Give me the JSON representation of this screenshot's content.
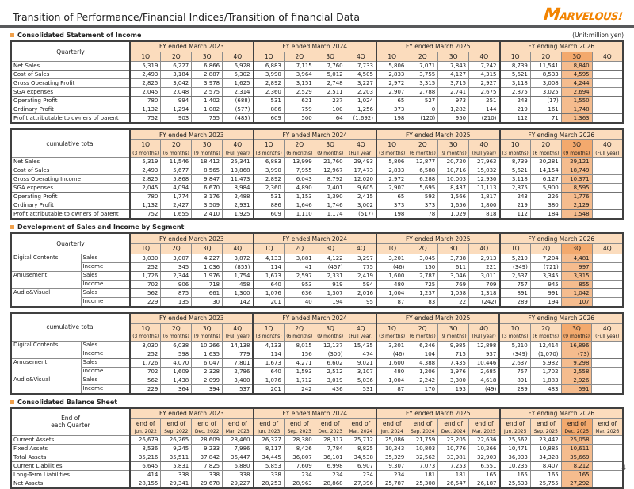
{
  "page": {
    "title": "Transition of Performance/Financial Indices/Transition of financial Data",
    "logo_text": "MARVELOUS!",
    "unit_note": "(Unit:million yen)",
    "page_number": "4"
  },
  "colors": {
    "accent_orange": "#F28300",
    "table_header_bg": "#FBDCBD",
    "highlight_column_bg": "#F5B183",
    "section_bullet": "#F0A04B",
    "divider_gray": "#58595B"
  },
  "sections": {
    "income": "Consolidated Statement of Income",
    "segment": "Development of Sales and Income by Segment",
    "balance": "Consolidated Balance Sheet"
  },
  "year_groups": [
    "FY ended March 2023",
    "FY ended March 2024",
    "FY ended March 2025",
    "FY ending March 2026"
  ],
  "tables": [
    {
      "name": "income-quarterly",
      "corner_label": "Quarterly",
      "label_col_widths": [
        150
      ],
      "highlight_col": 14,
      "columns": [
        "1Q",
        "2Q",
        "3Q",
        "4Q",
        "1Q",
        "2Q",
        "3Q",
        "4Q",
        "1Q",
        "2Q",
        "3Q",
        "4Q",
        "1Q",
        "2Q",
        "3Q",
        "4Q"
      ],
      "rows": [
        {
          "label": "Net Sales",
          "dotted": false,
          "values": [
            "5,319",
            "6,227",
            "6,866",
            "6,928",
            "6,883",
            "7,115",
            "7,760",
            "7,733",
            "5,806",
            "7,071",
            "7,843",
            "7,242",
            "8,739",
            "11,541",
            "8,840",
            ""
          ]
        },
        {
          "label": "Cost of Sales",
          "dotted": true,
          "values": [
            "2,493",
            "3,184",
            "2,887",
            "5,302",
            "3,990",
            "3,964",
            "5,012",
            "4,505",
            "2,833",
            "3,755",
            "4,127",
            "4,315",
            "5,621",
            "8,533",
            "4,595",
            ""
          ]
        },
        {
          "label": "Gross Operating Profit",
          "dotted": true,
          "values": [
            "2,825",
            "3,042",
            "3,978",
            "1,625",
            "2,892",
            "3,151",
            "2,748",
            "3,227",
            "2,972",
            "3,315",
            "3,715",
            "2,927",
            "3,118",
            "3,008",
            "4,244",
            ""
          ]
        },
        {
          "label": "SGA expenses",
          "dotted": false,
          "values": [
            "2,045",
            "2,048",
            "2,575",
            "2,314",
            "2,360",
            "2,529",
            "2,511",
            "2,203",
            "2,907",
            "2,788",
            "2,741",
            "2,675",
            "2,875",
            "3,025",
            "2,694",
            ""
          ]
        },
        {
          "label": "Operating Profit",
          "dotted": false,
          "values": [
            "780",
            "994",
            "1,402",
            "(688)",
            "531",
            "621",
            "237",
            "1,024",
            "65",
            "527",
            "973",
            "251",
            "243",
            "(17)",
            "1,550",
            ""
          ]
        },
        {
          "label": "Ordinary Profit",
          "dotted": false,
          "values": [
            "1,132",
            "1,294",
            "1,082",
            "(577)",
            "886",
            "759",
            "100",
            "1,256",
            "373",
            "0",
            "1,282",
            "144",
            "219",
            "161",
            "1,748",
            ""
          ]
        },
        {
          "label": "Profit attributable to owners of parent",
          "dotted": false,
          "values": [
            "752",
            "903",
            "755",
            "(485)",
            "609",
            "500",
            "64",
            "(1,692)",
            "198",
            "(120)",
            "950",
            "(210)",
            "112",
            "71",
            "1,363",
            ""
          ]
        }
      ]
    },
    {
      "name": "income-cumulative",
      "corner_label": "cumulative total",
      "label_col_widths": [
        150
      ],
      "highlight_col": 14,
      "columns": [
        "1Q\n(3 months)",
        "2Q\n(6 months)",
        "3Q\n(9 months)",
        "4Q\n(Full year)",
        "1Q\n(3 months)",
        "2Q\n(6 months)",
        "3Q\n(9 months)",
        "4Q\n(Full year)",
        "1Q\n(3 months)",
        "2Q\n(6 months)",
        "3Q\n(9 months)",
        "4Q\n(Full year)",
        "1Q\n(3 months)",
        "2Q\n(6 months)",
        "3Q\n(9 months)",
        "4Q\n(Full year)"
      ],
      "rows": [
        {
          "label": "Net Sales",
          "dotted": false,
          "values": [
            "5,319",
            "11,546",
            "18,412",
            "25,341",
            "6,883",
            "13,999",
            "21,760",
            "29,493",
            "5,806",
            "12,877",
            "20,720",
            "27,963",
            "8,739",
            "20,281",
            "29,121",
            ""
          ]
        },
        {
          "label": "Cost of Sales",
          "dotted": true,
          "values": [
            "2,493",
            "5,677",
            "8,565",
            "13,868",
            "3,990",
            "7,955",
            "12,967",
            "17,473",
            "2,833",
            "6,588",
            "10,716",
            "15,032",
            "5,621",
            "14,154",
            "18,749",
            ""
          ]
        },
        {
          "label": "Gross Operating Income",
          "dotted": true,
          "values": [
            "2,825",
            "5,868",
            "9,847",
            "11,473",
            "2,892",
            "6,043",
            "8,792",
            "12,020",
            "2,972",
            "6,288",
            "10,003",
            "12,930",
            "3,118",
            "6,127",
            "10,371",
            ""
          ]
        },
        {
          "label": "SGA expenses",
          "dotted": false,
          "values": [
            "2,045",
            "4,094",
            "6,670",
            "8,984",
            "2,360",
            "4,890",
            "7,401",
            "9,605",
            "2,907",
            "5,695",
            "8,437",
            "11,113",
            "2,875",
            "5,900",
            "8,595",
            ""
          ]
        },
        {
          "label": "Operating Profit",
          "dotted": false,
          "values": [
            "780",
            "1,774",
            "3,176",
            "2,488",
            "531",
            "1,153",
            "1,390",
            "2,415",
            "65",
            "592",
            "1,566",
            "1,817",
            "243",
            "226",
            "1,776",
            ""
          ]
        },
        {
          "label": "Ordinary Profit",
          "dotted": false,
          "values": [
            "1,132",
            "2,427",
            "3,509",
            "2,931",
            "886",
            "1,646",
            "1,746",
            "3,002",
            "373",
            "373",
            "1,656",
            "1,800",
            "219",
            "380",
            "2,129",
            ""
          ]
        },
        {
          "label": "Profit attributable to owners of parent",
          "dotted": false,
          "values": [
            "752",
            "1,655",
            "2,410",
            "1,925",
            "609",
            "1,110",
            "1,174",
            "(517)",
            "198",
            "78",
            "1,029",
            "818",
            "112",
            "184",
            "1,548",
            ""
          ]
        }
      ]
    },
    {
      "name": "segment-quarterly",
      "corner_label": "Quarterly",
      "label_col_widths": [
        88,
        62
      ],
      "highlight_col": 14,
      "columns": [
        "1Q",
        "2Q",
        "3Q",
        "4Q",
        "1Q",
        "2Q",
        "3Q",
        "4Q",
        "1Q",
        "2Q",
        "3Q",
        "4Q",
        "1Q",
        "2Q",
        "3Q",
        "4Q"
      ],
      "rows": [
        {
          "group": "Digital Contents",
          "label": "Sales",
          "dotted": true,
          "values": [
            "3,030",
            "3,007",
            "4,227",
            "3,872",
            "4,133",
            "3,881",
            "4,122",
            "3,297",
            "3,201",
            "3,045",
            "3,738",
            "2,913",
            "5,210",
            "7,204",
            "4,481",
            ""
          ]
        },
        {
          "label": "Income",
          "dotted": false,
          "values": [
            "252",
            "345",
            "1,036",
            "(855)",
            "114",
            "41",
            "(457)",
            "775",
            "(46)",
            "150",
            "611",
            "221",
            "(349)",
            "(721)",
            "997",
            ""
          ]
        },
        {
          "group": "Amusement",
          "label": "Sales",
          "dotted": true,
          "values": [
            "1,726",
            "2,344",
            "1,976",
            "1,754",
            "1,673",
            "2,597",
            "2,331",
            "2,419",
            "1,600",
            "2,787",
            "3,046",
            "3,011",
            "2,637",
            "3,345",
            "3,315",
            ""
          ]
        },
        {
          "label": "Income",
          "dotted": false,
          "values": [
            "702",
            "906",
            "718",
            "458",
            "640",
            "953",
            "919",
            "594",
            "480",
            "725",
            "769",
            "709",
            "757",
            "945",
            "855",
            ""
          ]
        },
        {
          "group": "Audio&Visual",
          "label": "Sales",
          "dotted": true,
          "values": [
            "562",
            "875",
            "661",
            "1,300",
            "1,076",
            "636",
            "1,307",
            "2,016",
            "1,004",
            "1,237",
            "1,058",
            "1,318",
            "891",
            "991",
            "1,042",
            ""
          ]
        },
        {
          "label": "Income",
          "dotted": false,
          "values": [
            "229",
            "135",
            "30",
            "142",
            "201",
            "40",
            "194",
            "95",
            "87",
            "83",
            "22",
            "(242)",
            "289",
            "194",
            "107",
            ""
          ]
        }
      ]
    },
    {
      "name": "segment-cumulative",
      "corner_label": "cumulative total",
      "label_col_widths": [
        88,
        62
      ],
      "highlight_col": 14,
      "columns": [
        "1Q\n(3 months)",
        "2Q\n(6 months)",
        "3Q\n(9 months)",
        "4Q\n(Full year)",
        "1Q\n(3 months)",
        "2Q\n(6 months)",
        "3Q\n(9 months)",
        "4Q\n(Full year)",
        "1Q\n(3 months)",
        "2Q\n(6 months)",
        "3Q\n(9 months)",
        "4Q\n(Full year)",
        "1Q\n(3 months)",
        "2Q\n(6 months)",
        "3Q\n(9 months)",
        "4Q\n(Full year)"
      ],
      "rows": [
        {
          "group": "Digital Contents",
          "label": "Sales",
          "dotted": true,
          "values": [
            "3,030",
            "6,038",
            "10,266",
            "14,138",
            "4,133",
            "8,015",
            "12,137",
            "15,435",
            "3,201",
            "6,246",
            "9,985",
            "12,898",
            "5,210",
            "12,414",
            "16,896",
            ""
          ]
        },
        {
          "label": "Income",
          "dotted": false,
          "values": [
            "252",
            "598",
            "1,635",
            "779",
            "114",
            "156",
            "(300)",
            "474",
            "(46)",
            "104",
            "715",
            "937",
            "(349)",
            "(1,070)",
            "(73)",
            ""
          ]
        },
        {
          "group": "Amusement",
          "label": "Sales",
          "dotted": true,
          "values": [
            "1,726",
            "4,070",
            "6,047",
            "7,801",
            "1,673",
            "4,271",
            "6,602",
            "9,021",
            "1,600",
            "4,388",
            "7,435",
            "10,446",
            "2,637",
            "5,982",
            "9,298",
            ""
          ]
        },
        {
          "label": "Income",
          "dotted": false,
          "values": [
            "702",
            "1,609",
            "2,328",
            "2,786",
            "640",
            "1,593",
            "2,512",
            "3,107",
            "480",
            "1,206",
            "1,976",
            "2,685",
            "757",
            "1,702",
            "2,558",
            ""
          ]
        },
        {
          "group": "Audio&Visual",
          "label": "Sales",
          "dotted": true,
          "values": [
            "562",
            "1,438",
            "2,099",
            "3,400",
            "1,076",
            "1,712",
            "3,019",
            "5,036",
            "1,004",
            "2,242",
            "3,300",
            "4,618",
            "891",
            "1,883",
            "2,926",
            ""
          ]
        },
        {
          "label": "Income",
          "dotted": false,
          "values": [
            "229",
            "364",
            "394",
            "537",
            "201",
            "242",
            "436",
            "531",
            "87",
            "170",
            "193",
            "(49)",
            "289",
            "483",
            "591",
            ""
          ]
        }
      ]
    },
    {
      "name": "balance-sheet",
      "corner_label": "End of\neach Quarter",
      "label_col_widths": [
        150
      ],
      "highlight_col": 14,
      "columns": [
        "end of\nJun. 2022",
        "end of\nSep. 2022",
        "end of\nDec. 2022",
        "end of\nMar. 2023",
        "end of\nJun. 2023",
        "end of\nSep. 2023",
        "end of\nDec. 2023",
        "end of\nMar. 2024",
        "end of\nJun. 2024",
        "end of\nSep. 2024",
        "end of\nDec. 2024",
        "end of\nMar. 2025",
        "end of\nJun. 2025",
        "end of\nSep. 2025",
        "end of\nDec. 2025",
        "end of\nMar. 2026"
      ],
      "rows": [
        {
          "label": "Current Assets",
          "dotted": true,
          "values": [
            "26,679",
            "26,265",
            "28,609",
            "28,460",
            "26,327",
            "28,380",
            "28,317",
            "25,712",
            "25,086",
            "21,759",
            "23,205",
            "22,636",
            "25,562",
            "23,442",
            "25,058",
            ""
          ]
        },
        {
          "label": "Fixed Assets",
          "dotted": true,
          "values": [
            "8,536",
            "9,245",
            "9,233",
            "7,986",
            "8,117",
            "8,426",
            "7,784",
            "8,825",
            "10,243",
            "10,803",
            "10,776",
            "10,266",
            "10,471",
            "10,885",
            "10,611",
            ""
          ]
        },
        {
          "label": "Total Assets",
          "dotted": false,
          "values": [
            "35,216",
            "35,511",
            "37,842",
            "36,447",
            "34,445",
            "36,807",
            "36,101",
            "34,538",
            "35,329",
            "32,562",
            "33,981",
            "32,903",
            "36,033",
            "34,328",
            "35,669",
            ""
          ]
        },
        {
          "label": "Current Liabilities",
          "dotted": true,
          "values": [
            "6,645",
            "5,831",
            "7,825",
            "6,880",
            "5,853",
            "7,609",
            "6,998",
            "6,907",
            "9,307",
            "7,073",
            "7,253",
            "6,551",
            "10,235",
            "8,407",
            "8,212",
            ""
          ]
        },
        {
          "label": "Long-Term Liabilities",
          "dotted": false,
          "values": [
            "414",
            "338",
            "338",
            "338",
            "338",
            "234",
            "234",
            "234",
            "234",
            "181",
            "181",
            "165",
            "165",
            "165",
            "165",
            ""
          ]
        },
        {
          "label": "Net Assets",
          "dotted": false,
          "values": [
            "28,155",
            "29,341",
            "29,678",
            "29,227",
            "28,253",
            "28,963",
            "28,868",
            "27,396",
            "25,787",
            "25,308",
            "26,547",
            "26,187",
            "25,633",
            "25,755",
            "27,292",
            ""
          ]
        }
      ]
    }
  ]
}
